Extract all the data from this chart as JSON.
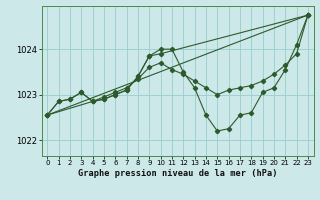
{
  "bg_color": "#cce8e8",
  "grid_color": "#99cccc",
  "line_color": "#2d5a2d",
  "title": "Graphe pression niveau de la mer (hPa)",
  "xlim": [
    -0.5,
    23.5
  ],
  "ylim": [
    1021.65,
    1024.95
  ],
  "yticks": [
    1022,
    1023,
    1024
  ],
  "xticks": [
    0,
    1,
    2,
    3,
    4,
    5,
    6,
    7,
    8,
    9,
    10,
    11,
    12,
    13,
    14,
    15,
    16,
    17,
    18,
    19,
    20,
    21,
    22,
    23
  ],
  "series": [
    {
      "x": [
        0,
        23
      ],
      "y": [
        1022.55,
        1024.75
      ]
    },
    {
      "x": [
        0,
        1,
        2,
        3,
        4,
        5,
        6,
        7,
        8,
        9,
        10,
        11,
        12,
        13,
        14,
        15,
        16,
        17,
        18,
        19,
        20,
        21,
        22,
        23
      ],
      "y": [
        1022.55,
        1022.85,
        1022.9,
        1023.05,
        1022.85,
        1022.9,
        1023.0,
        1023.1,
        1023.4,
        1023.85,
        1024.0,
        1024.0,
        1023.5,
        1023.15,
        1022.55,
        1022.2,
        1022.25,
        1022.55,
        1022.6,
        1023.05,
        1023.15,
        1023.55,
        1024.1,
        1024.75
      ]
    },
    {
      "x": [
        0,
        1,
        2,
        3,
        4,
        5,
        6,
        7,
        8,
        9,
        10,
        23
      ],
      "y": [
        1022.55,
        1022.85,
        1022.9,
        1023.05,
        1022.85,
        1022.9,
        1023.0,
        1023.1,
        1023.4,
        1023.85,
        1023.9,
        1024.75
      ]
    },
    {
      "x": [
        0,
        4,
        5,
        6,
        7,
        8,
        9,
        10,
        11,
        12,
        13,
        14,
        15,
        16,
        17,
        18,
        19,
        20,
        21,
        22,
        23
      ],
      "y": [
        1022.55,
        1022.85,
        1022.95,
        1023.05,
        1023.15,
        1023.35,
        1023.6,
        1023.7,
        1023.55,
        1023.45,
        1023.3,
        1023.15,
        1023.0,
        1023.1,
        1023.15,
        1023.2,
        1023.3,
        1023.45,
        1023.65,
        1023.9,
        1024.75
      ]
    }
  ]
}
